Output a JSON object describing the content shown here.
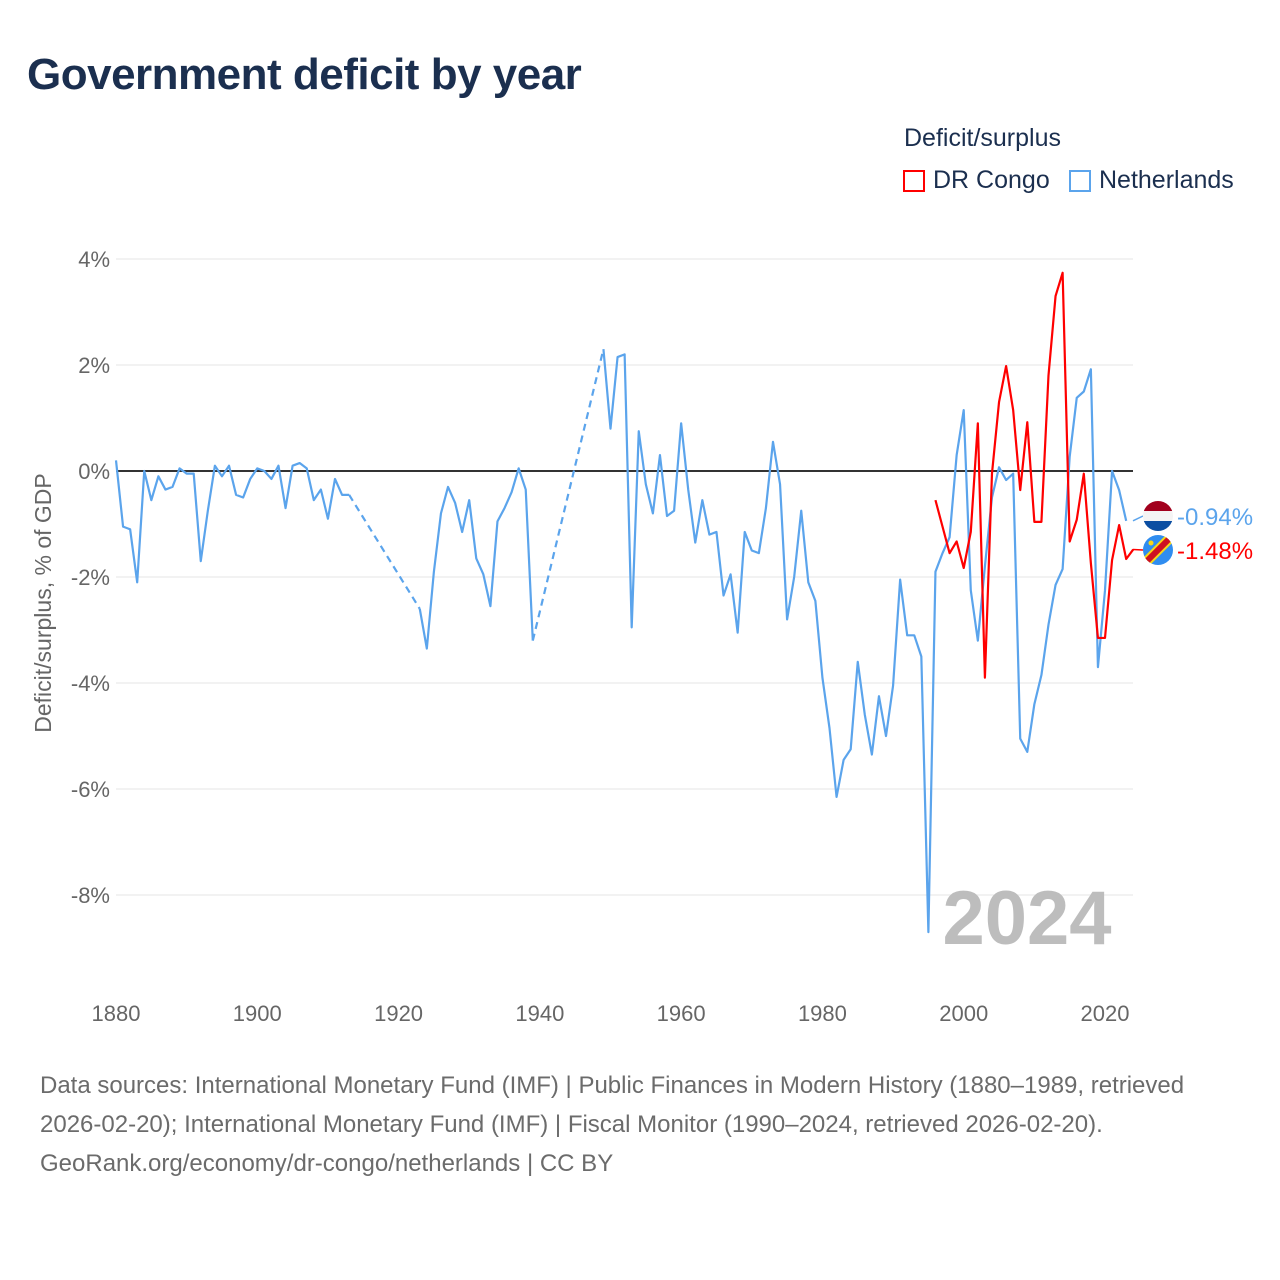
{
  "title": "Government deficit by year",
  "legend": {
    "title": "Deficit/surplus",
    "items": [
      {
        "label": "DR Congo",
        "color": "#ff0000"
      },
      {
        "label": "Netherlands",
        "color": "#5ba4ec"
      }
    ]
  },
  "year_watermark": "2024",
  "footer": {
    "sources": "Data sources: International Monetary Fund (IMF) | Public Finances in Modern History (1880–1989, retrieved 2026-02-20); International Monetary Fund (IMF) | Fiscal Monitor (1990–2024, retrieved 2026-02-20).",
    "credit": "GeoRank.org/economy/dr-congo/netherlands | CC BY"
  },
  "chart_data": {
    "type": "line",
    "title": "Government deficit by year",
    "xlabel": "",
    "ylabel": "Deficit/surplus, % of GDP",
    "xlim": [
      1880,
      2024
    ],
    "ylim": [
      -9.5,
      4.4
    ],
    "x_ticks": [
      1880,
      1900,
      1920,
      1940,
      1960,
      1980,
      2000,
      2020
    ],
    "x_tick_labels": [
      "1880",
      "1900",
      "1920",
      "1940",
      "1960",
      "1980",
      "2000",
      "2020"
    ],
    "y_ticks": [
      4,
      2,
      0,
      -2,
      -4,
      -6,
      -8
    ],
    "y_tick_labels": [
      "4%",
      "2%",
      "0%",
      "-2%",
      "-4%",
      "-6%",
      "-8%"
    ],
    "grid": true,
    "legend_position": "top-right",
    "end_labels": [
      {
        "series": "Netherlands",
        "label": "-0.94%",
        "value": -0.94,
        "flag": "netherlands-flag"
      },
      {
        "series": "DR Congo",
        "label": "-1.48%",
        "value": -1.48,
        "flag": "dr-congo-flag"
      }
    ],
    "series": [
      {
        "name": "Netherlands",
        "color": "#5ba4ec",
        "start_year": 1880,
        "values": [
          0.2,
          -1.05,
          -1.1,
          -2.1,
          0.0,
          -0.55,
          -0.1,
          -0.35,
          -0.3,
          0.05,
          -0.05,
          -0.05,
          -1.7,
          -0.75,
          0.1,
          -0.1,
          0.1,
          -0.45,
          -0.5,
          -0.15,
          0.05,
          0.0,
          -0.15,
          0.1,
          -0.7,
          0.1,
          0.15,
          0.05,
          -0.55,
          -0.35,
          -0.9,
          -0.15,
          -0.45,
          -0.45,
          null,
          null,
          null,
          null,
          null,
          null,
          null,
          null,
          null,
          -2.6,
          -3.35,
          -1.9,
          -0.8,
          -0.3,
          -0.6,
          -1.15,
          -0.55,
          -1.65,
          -1.95,
          -2.55,
          -0.95,
          -0.7,
          -0.4,
          0.05,
          -0.35,
          -3.2,
          null,
          null,
          null,
          null,
          null,
          null,
          null,
          null,
          null,
          2.3,
          0.8,
          2.15,
          2.2,
          -2.95,
          0.75,
          -0.25,
          -0.8,
          0.3,
          -0.85,
          -0.75,
          0.9,
          -0.35,
          -1.35,
          -0.55,
          -1.2,
          -1.15,
          -2.35,
          -1.95,
          -3.05,
          -1.15,
          -1.5,
          -1.55,
          -0.7,
          0.55,
          -0.25,
          -2.8,
          -2.0,
          -0.75,
          -2.1,
          -2.45,
          -3.9,
          -4.85,
          -6.15,
          -5.45,
          -5.25,
          -3.6,
          -4.6,
          -5.35,
          -4.25,
          -5.0,
          -4.05,
          -2.05,
          -3.1,
          -3.1,
          -3.5,
          -8.7,
          -1.9,
          -1.55,
          -1.25,
          0.3,
          1.15,
          -2.25,
          -3.2,
          -1.8,
          -0.5,
          0.07,
          -0.17,
          -0.05,
          -5.05,
          -5.3,
          -4.4,
          -3.85,
          -2.9,
          -2.15,
          -1.85,
          0.27,
          1.38,
          1.5,
          1.92,
          -3.7,
          -2.25,
          0.0,
          -0.36,
          -0.94
        ]
      },
      {
        "name": "DR Congo",
        "color": "#ff0000",
        "start_year": 1996,
        "values": [
          -0.55,
          -1.05,
          -1.55,
          -1.33,
          -1.83,
          -1.15,
          0.9,
          -3.9,
          -0.05,
          1.3,
          1.98,
          1.15,
          -0.36,
          0.92,
          -0.96,
          -0.96,
          1.8,
          3.3,
          3.74,
          -1.33,
          -0.92,
          -0.05,
          -1.74,
          -3.15,
          -3.15,
          -1.68,
          -1.02,
          -1.66,
          -1.48
        ]
      }
    ]
  }
}
